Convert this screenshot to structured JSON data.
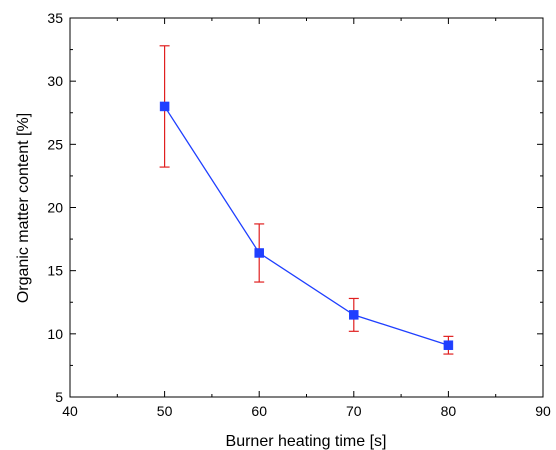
{
  "chart_data": {
    "type": "line",
    "title": "",
    "xlabel": "Burner heating time [s]",
    "ylabel": "Organic matter content [%]",
    "xlim": [
      40,
      90
    ],
    "ylim": [
      5,
      35
    ],
    "xticks": [
      40,
      50,
      60,
      70,
      80,
      90
    ],
    "yticks": [
      5,
      10,
      15,
      20,
      25,
      30,
      35
    ],
    "xtick_labels": [
      "40",
      "50",
      "60",
      "70",
      "80",
      "90"
    ],
    "ytick_labels": [
      "5",
      "10",
      "15",
      "20",
      "25",
      "30",
      "35"
    ],
    "grid": false,
    "legend": "none",
    "series": [
      {
        "x": [
          50,
          60,
          70,
          80
        ],
        "y": [
          28.0,
          16.4,
          11.5,
          9.1
        ],
        "error": [
          4.8,
          2.3,
          1.3,
          0.7
        ],
        "line_color": "#1f3fff",
        "marker": "square",
        "marker_color": "#1f3fff",
        "error_color": "#e02020"
      }
    ]
  }
}
